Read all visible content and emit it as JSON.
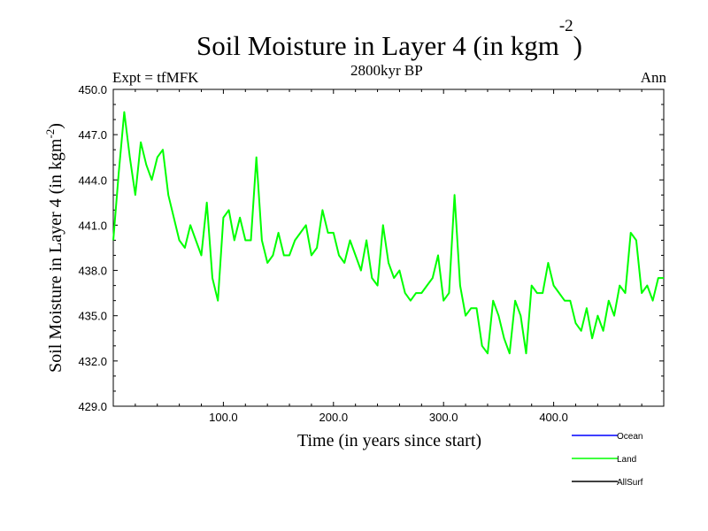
{
  "header": {
    "title": "Soil Moisture in Layer 4 (in kgm",
    "title_sup": "-2",
    "title_close": ")",
    "subtitle": "2800kyr BP",
    "expt": "Expt = tfMFK",
    "season": "Ann"
  },
  "chart_data": {
    "type": "line",
    "title": "Soil Moisture in Layer 4 (in kgm-2)",
    "subtitle": "2800kyr BP",
    "xlabel": "Time (in years since start)",
    "ylabel": "Soil Moisture in Layer 4 (in kgm-2)",
    "ylabel_main": "Soil Moisture in Layer 4 (in kgm",
    "ylabel_sup": "-2",
    "ylabel_close": ")",
    "xlim": [
      0,
      500
    ],
    "ylim": [
      429,
      450
    ],
    "x_ticks": [
      100,
      200,
      300,
      400
    ],
    "x_tick_labels": [
      "100.0",
      "200.0",
      "300.0",
      "400.0"
    ],
    "y_ticks": [
      429,
      432,
      435,
      438,
      441,
      444,
      447,
      450
    ],
    "y_tick_labels": [
      "429.0",
      "432.0",
      "435.0",
      "438.0",
      "441.0",
      "444.0",
      "447.0",
      "450.0"
    ],
    "grid": false,
    "legend_position": "bottom-right, below plot",
    "legend": [
      {
        "name": "Ocean",
        "color": "#0000ff"
      },
      {
        "name": "Land",
        "color": "#00ff00"
      },
      {
        "name": "AllSurf",
        "color": "#000000"
      }
    ],
    "series": [
      {
        "name": "Land",
        "color": "#00ff00",
        "x_start": 0,
        "x_step": 5,
        "values": [
          440.0,
          444.5,
          448.5,
          445.5,
          443.0,
          446.5,
          445.0,
          444.0,
          445.5,
          446.0,
          443.0,
          441.5,
          440.0,
          439.5,
          441.0,
          440.0,
          439.0,
          442.5,
          437.5,
          436.0,
          441.5,
          442.0,
          440.0,
          441.5,
          440.0,
          440.0,
          445.5,
          440.0,
          438.5,
          439.0,
          440.5,
          439.0,
          439.0,
          440.0,
          440.5,
          441.0,
          439.0,
          439.5,
          442.0,
          440.5,
          440.5,
          439.0,
          438.5,
          440.0,
          439.0,
          438.0,
          440.0,
          437.5,
          437.0,
          441.0,
          438.5,
          437.5,
          438.0,
          436.5,
          436.0,
          436.5,
          436.5,
          437.0,
          437.5,
          439.0,
          436.0,
          436.5,
          443.0,
          437.0,
          435.0,
          435.5,
          435.5,
          433.0,
          432.5,
          436.0,
          435.0,
          433.5,
          432.5,
          436.0,
          435.0,
          432.5,
          437.0,
          436.5,
          436.5,
          438.5,
          437.0,
          436.5,
          436.0,
          436.0,
          434.5,
          434.0,
          435.5,
          433.5,
          435.0,
          434.0,
          436.0,
          435.0,
          437.0,
          436.5,
          440.5,
          440.0,
          436.5,
          437.0,
          436.0,
          437.5,
          437.5
        ]
      }
    ]
  }
}
